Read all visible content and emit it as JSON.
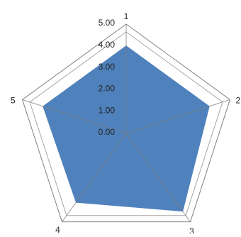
{
  "chart_data": {
    "type": "radar",
    "categories": [
      "1",
      "2",
      "3",
      "4",
      "5"
    ],
    "series": [
      {
        "values": [
          4.0,
          4.0,
          4.4,
          3.9,
          4.0
        ]
      }
    ],
    "rlim": [
      0,
      5
    ],
    "radial_ticks": [
      "0.00",
      "1.00",
      "2.00",
      "3.00",
      "4.00",
      "5.00"
    ],
    "grid": true,
    "legend": "none",
    "title": ""
  },
  "colors": {
    "series_fill": "#4F81BD",
    "grid_line": "#A6A6A6",
    "outer_ring": "#808080",
    "spoke": "#7f7f7f",
    "text": "#222222"
  }
}
